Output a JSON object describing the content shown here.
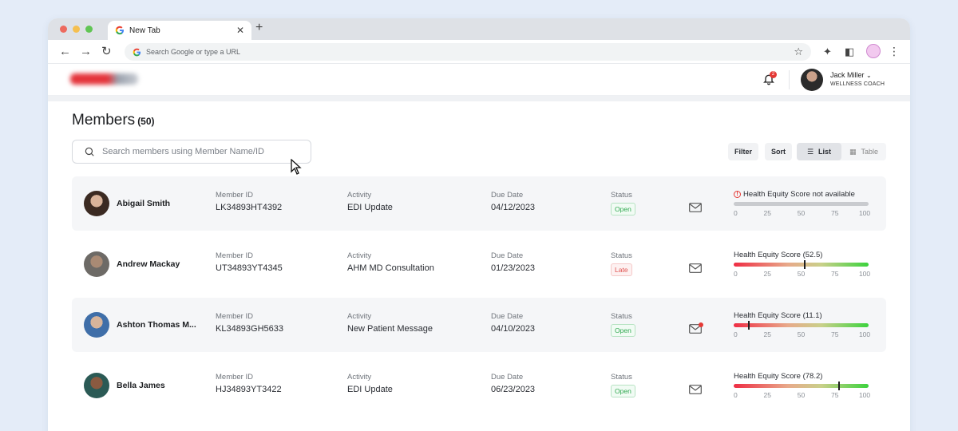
{
  "browser": {
    "tab_title": "New Tab",
    "omnibox_placeholder": "Search Google or type a URL",
    "window_dot_colors": [
      "#ed6a5e",
      "#f5bf4f",
      "#61c554"
    ]
  },
  "header": {
    "notification_count": "2",
    "user_name": "Jack Miller",
    "user_role": "WELLNESS COACH"
  },
  "page": {
    "title": "Members",
    "count": "(50)",
    "search_placeholder": "Search members using Member Name/ID",
    "filter_label": "Filter",
    "sort_label": "Sort",
    "view_list_label": "List",
    "view_table_label": "Table",
    "active_view": "List"
  },
  "labels": {
    "member_id": "Member ID",
    "activity": "Activity",
    "due_date": "Due Date",
    "status": "Status"
  },
  "score_ticks": [
    "0",
    "25",
    "50",
    "75",
    "100"
  ],
  "colors": {
    "status_open": "#2fa84f",
    "status_late": "#e0524f",
    "score_low": "#ef2d44",
    "score_high": "#3bd23d",
    "notification": "#e53935"
  },
  "members": [
    {
      "name": "Abigail Smith",
      "member_id": "LK34893HT4392",
      "activity": "EDI Update",
      "due_date": "04/12/2023",
      "status": "Open",
      "score_title": "Health Equity Score not available",
      "score": null,
      "unread_message": false,
      "avatar_icon": "woman-portrait"
    },
    {
      "name": "Andrew Mackay",
      "member_id": "UT34893YT4345",
      "activity": "AHM MD Consultation",
      "due_date": "01/23/2023",
      "status": "Late",
      "score_title": "Health Equity Score (52.5)",
      "score": 52.5,
      "unread_message": false,
      "avatar_icon": "man-portrait"
    },
    {
      "name": "Ashton Thomas M...",
      "member_id": "KL34893GH5633",
      "activity": "New Patient Message",
      "due_date": "04/10/2023",
      "status": "Open",
      "score_title": "Health Equity Score (11.1)",
      "score": 11.1,
      "unread_message": true,
      "avatar_icon": "man-suit-portrait"
    },
    {
      "name": "Bella James",
      "member_id": "HJ34893YT3422",
      "activity": "EDI Update",
      "due_date": "06/23/2023",
      "status": "Open",
      "score_title": "Health Equity Score (78.2)",
      "score": 78.2,
      "unread_message": false,
      "avatar_icon": "woman-portrait"
    }
  ]
}
